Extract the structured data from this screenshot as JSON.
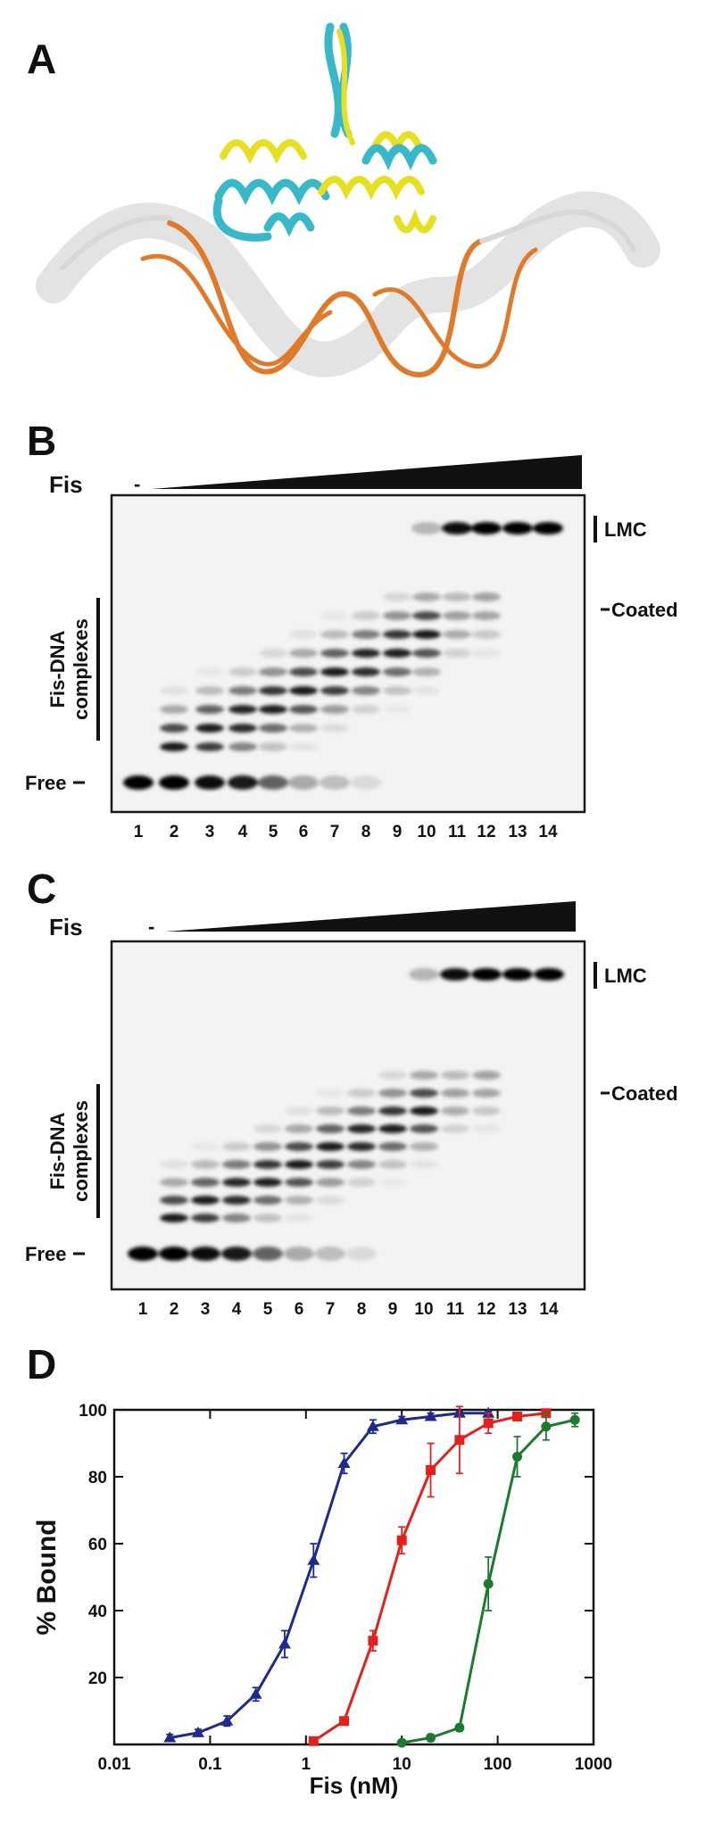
{
  "panels": {
    "A": {
      "label": "A"
    },
    "B": {
      "label": "B",
      "fis": "Fis",
      "minus": "-",
      "lanes": [
        "1",
        "2",
        "3",
        "4",
        "5",
        "6",
        "7",
        "8",
        "9",
        "10",
        "11",
        "12",
        "13",
        "14"
      ],
      "lmc": "LMC",
      "coated": "Coated",
      "complexes": [
        "Fis-DNA",
        "complexes"
      ],
      "free": "Free"
    },
    "C": {
      "label": "C",
      "fis": "Fis",
      "minus": "-",
      "lanes": [
        "1",
        "2",
        "3",
        "4",
        "5",
        "6",
        "7",
        "8",
        "9",
        "10",
        "11",
        "12",
        "13",
        "14"
      ],
      "lmc": "LMC",
      "coated": "Coated",
      "complexes": [
        "Fis-DNA",
        "complexes"
      ],
      "free": "Free"
    },
    "D": {
      "label": "D"
    }
  },
  "chart_data": {
    "type": "line",
    "xlabel": "Fis (nM)",
    "ylabel": "% Bound",
    "xscale": "log",
    "xlim": [
      0.01,
      1000
    ],
    "ylim": [
      0,
      100
    ],
    "xticks": [
      0.01,
      0.1,
      1,
      10,
      100,
      1000
    ],
    "yticks": [
      20,
      40,
      60,
      80,
      100
    ],
    "series": [
      {
        "color": "#1f2b8c",
        "marker": "triangle",
        "x": [
          0.038,
          0.075,
          0.15,
          0.3,
          0.6,
          1.2,
          2.5,
          5,
          10,
          20,
          40,
          80
        ],
        "values": [
          2,
          3.5,
          7,
          15,
          30,
          55,
          84,
          95,
          97,
          98,
          99,
          99
        ],
        "errors": [
          1,
          1,
          1.5,
          2,
          4,
          5,
          3,
          2,
          1,
          1,
          0.5,
          0.5
        ]
      },
      {
        "color": "#e3201c",
        "marker": "square",
        "x": [
          1.2,
          2.5,
          5,
          10,
          20,
          40,
          80,
          160,
          320
        ],
        "values": [
          1,
          7,
          31,
          61,
          82,
          91,
          96,
          98,
          99
        ],
        "errors": [
          0.5,
          1,
          3,
          4,
          8,
          10,
          3,
          1,
          0.5
        ]
      },
      {
        "color": "#1c7a30",
        "marker": "circle",
        "x": [
          10,
          20,
          40,
          80,
          160,
          320,
          640
        ],
        "values": [
          0.5,
          2,
          5,
          48,
          86,
          95,
          97
        ],
        "errors": [
          0.5,
          1,
          1,
          8,
          6,
          4,
          2
        ]
      }
    ]
  }
}
